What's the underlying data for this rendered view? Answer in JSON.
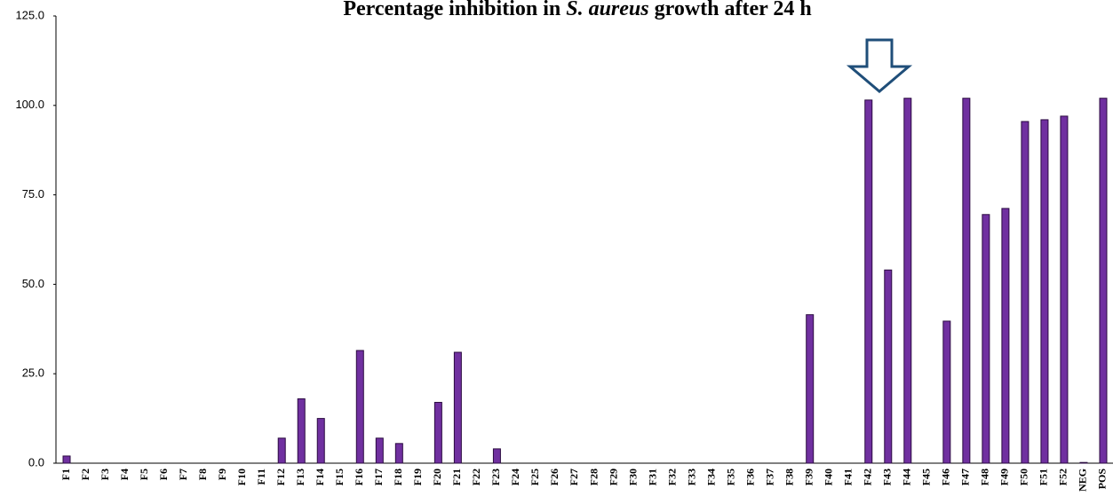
{
  "chart_data": {
    "type": "bar",
    "title": "Percentage inhibition in S. aureus growth after 24 h",
    "title_italic": "S. aureus",
    "categories": [
      "F1",
      "F2",
      "F3",
      "F4",
      "F5",
      "F6",
      "F7",
      "F8",
      "F9",
      "F10",
      "F11",
      "F12",
      "F13",
      "F14",
      "F15",
      "F16",
      "F17",
      "F18",
      "F19",
      "F20",
      "F21",
      "F22",
      "F23",
      "F24",
      "F25",
      "F26",
      "F27",
      "F28",
      "F29",
      "F30",
      "F31",
      "F32",
      "F33",
      "F34",
      "F35",
      "F36",
      "F37",
      "F38",
      "F39",
      "F40",
      "F41",
      "F42",
      "F43",
      "F44",
      "F45",
      "F46",
      "F47",
      "F48",
      "F49",
      "F50",
      "F51",
      "F52",
      "NEG",
      "POS"
    ],
    "values": [
      2.0,
      0,
      0,
      0,
      0,
      0,
      0,
      0,
      0,
      0,
      0,
      7.0,
      18.0,
      12.5,
      0,
      31.5,
      7.0,
      5.5,
      0,
      17.0,
      31.0,
      0,
      4.0,
      0,
      0,
      0,
      0,
      0,
      0,
      0,
      0,
      0,
      0,
      0,
      0,
      0,
      0,
      0,
      41.5,
      0,
      0,
      101.5,
      54.0,
      102.0,
      0,
      39.7,
      102.0,
      69.5,
      71.2,
      95.5,
      96.0,
      97.0,
      0.2,
      102.0
    ],
    "color": "#7030a0",
    "ylim": [
      0,
      125
    ],
    "yticks": [
      {
        "value": 0,
        "label": "0.0"
      },
      {
        "value": 25,
        "label": "25.0"
      },
      {
        "value": 50,
        "label": "50.0"
      },
      {
        "value": 75,
        "label": "75.0"
      },
      {
        "value": 100,
        "label": "100.0"
      },
      {
        "value": 125,
        "label": "125.0"
      }
    ],
    "grid": false
  }
}
